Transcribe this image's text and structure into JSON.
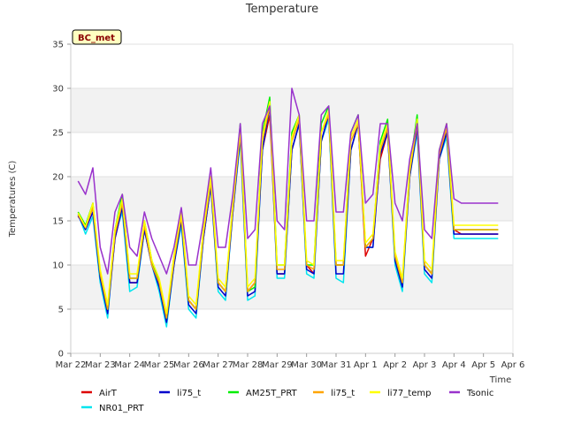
{
  "chart_data": {
    "type": "line",
    "title": "Temperature",
    "xlabel": "Time",
    "ylabel": "Temperatures (C)",
    "badge": "BC_met",
    "ylim": [
      0,
      35
    ],
    "yticks": [
      0,
      5,
      10,
      15,
      20,
      25,
      30,
      35
    ],
    "xlim": [
      0,
      15
    ],
    "xticks": [
      0,
      1,
      2,
      3,
      4,
      5,
      6,
      7,
      8,
      9,
      10,
      11,
      12,
      13,
      14,
      15
    ],
    "xtick_labels": [
      "Mar 22",
      "Mar 23",
      "Mar 24",
      "Mar 25",
      "Mar 26",
      "Mar 27",
      "Mar 28",
      "Mar 29",
      "Mar 30",
      "Mar 31",
      "Apr 1",
      "Apr 2",
      "Apr 3",
      "Apr 4",
      "Apr 5",
      "Apr 6"
    ],
    "grid": "horizontal bands",
    "legend_position": "bottom",
    "x": [
      0.25,
      0.5,
      0.75,
      1.0,
      1.25,
      1.5,
      1.75,
      2.0,
      2.25,
      2.5,
      2.75,
      3.0,
      3.25,
      3.5,
      3.75,
      4.0,
      4.25,
      4.5,
      4.75,
      5.0,
      5.25,
      5.5,
      5.75,
      6.0,
      6.25,
      6.5,
      6.75,
      7.0,
      7.25,
      7.5,
      7.75,
      8.0,
      8.25,
      8.5,
      8.75,
      9.0,
      9.25,
      9.5,
      9.75,
      10.0,
      10.25,
      10.5,
      10.75,
      11.0,
      11.25,
      11.5,
      11.75,
      12.0,
      12.25,
      12.5,
      12.75,
      13.0,
      13.25,
      13.5,
      13.75,
      14.0,
      14.25,
      14.5
    ],
    "series": [
      {
        "name": "AirT",
        "color": "#dd0000",
        "values": [
          15.5,
          14.5,
          16.5,
          9,
          5,
          13,
          16.5,
          8,
          8,
          14,
          10,
          8,
          4,
          10,
          15,
          6,
          5,
          13,
          19,
          8,
          7,
          16,
          25,
          7,
          8,
          23,
          27,
          9,
          9,
          23,
          26,
          10,
          9,
          24,
          27,
          10,
          10,
          23,
          26,
          11,
          13,
          22,
          25,
          11,
          8,
          20,
          26,
          10,
          9,
          22,
          25,
          14,
          13.5,
          13.5,
          13.5,
          13.5,
          13.5,
          13.5
        ]
      },
      {
        "name": "NR01_PRT",
        "color": "#00e5ee",
        "values": [
          15.8,
          13.5,
          15.5,
          8,
          4,
          13.5,
          16,
          7,
          7.5,
          14,
          10,
          7,
          3,
          10,
          14.5,
          5,
          4,
          13,
          19,
          7,
          6,
          16,
          24,
          6,
          6.5,
          23,
          28,
          8.5,
          8.5,
          23,
          26,
          9,
          8.5,
          24,
          26.5,
          8.5,
          8,
          23,
          26,
          12,
          12,
          23,
          25,
          10,
          7,
          20,
          25,
          9,
          8,
          22,
          24.5,
          13,
          13,
          13,
          13,
          13,
          13,
          13
        ]
      },
      {
        "name": "li75_t",
        "color": "#0000cc",
        "values": [
          15.6,
          14,
          16,
          8.5,
          4.5,
          13,
          16.5,
          8,
          8,
          14,
          10,
          7.5,
          3.5,
          10,
          15,
          5.5,
          4.5,
          13,
          19,
          7.5,
          6.5,
          16,
          24.5,
          6.5,
          7,
          23,
          28,
          9,
          9,
          23,
          26,
          9.5,
          9,
          24,
          27,
          9,
          9,
          23,
          26,
          12,
          12,
          22.5,
          25,
          10.5,
          7.5,
          20,
          25.5,
          9.5,
          8.5,
          22,
          25,
          13.5,
          13.5,
          13.5,
          13.5,
          13.5,
          13.5,
          13.5
        ]
      },
      {
        "name": "AM25T_PRT",
        "color": "#00ee00",
        "values": [
          16,
          14.5,
          17,
          9,
          5,
          14,
          18,
          8.5,
          8.5,
          15,
          10.5,
          8,
          4,
          11,
          16,
          6,
          5,
          14,
          20,
          8,
          7,
          17,
          26,
          7,
          7.5,
          25,
          29,
          10,
          10,
          25,
          27,
          10,
          10,
          26,
          28,
          10,
          10,
          25,
          27,
          12,
          13,
          24,
          26.5,
          11,
          8,
          21,
          27,
          10,
          9,
          23,
          26,
          14,
          14,
          14,
          14,
          14,
          14,
          14
        ]
      },
      {
        "name": "li75_t",
        "color": "#ffa500",
        "values": [
          15.7,
          14.2,
          16.5,
          9,
          5,
          13.5,
          17,
          8.5,
          8.5,
          14.5,
          10,
          8,
          4,
          10.5,
          15.5,
          6,
          5,
          13.5,
          19.5,
          8,
          7,
          16.5,
          25,
          7,
          8,
          24,
          28,
          9.5,
          9.5,
          24,
          26.5,
          10,
          9.5,
          25,
          27,
          10,
          10,
          24,
          26,
          12,
          13,
          23,
          25.5,
          11,
          8,
          20.5,
          26,
          10,
          9,
          22.5,
          25.5,
          14,
          14,
          14,
          14,
          14,
          14,
          14
        ]
      },
      {
        "name": "li77_temp",
        "color": "#ffff00",
        "values": [
          15.9,
          14.3,
          17,
          9.5,
          5.5,
          14,
          17.5,
          9,
          9,
          15,
          10.5,
          8.5,
          4.5,
          11,
          16,
          6.5,
          5.5,
          14,
          20,
          8.5,
          7.5,
          17,
          25.5,
          7.5,
          8.5,
          24.5,
          28.5,
          10,
          10,
          24.5,
          27,
          10.5,
          10,
          25,
          27.5,
          10.5,
          10.5,
          24.5,
          26.5,
          12.5,
          13.5,
          23.5,
          26,
          11.5,
          8.5,
          21,
          26.5,
          10.5,
          9.5,
          23,
          26,
          14.5,
          14.5,
          14.5,
          14.5,
          14.5,
          14.5,
          14.5
        ]
      },
      {
        "name": "Tsonic",
        "color": "#9932cc",
        "values": [
          19.5,
          18,
          21,
          12,
          9,
          16,
          18,
          12,
          11,
          16,
          13,
          11,
          9,
          12,
          16.5,
          10,
          10,
          15,
          21,
          12,
          12,
          18,
          26,
          13,
          14,
          26,
          28,
          15,
          14,
          30,
          27,
          15,
          15,
          27,
          28,
          16,
          16,
          25,
          27,
          17,
          18,
          26,
          26,
          17,
          15,
          22,
          26,
          14,
          13,
          23,
          26,
          17.5,
          17,
          17,
          17,
          17,
          17,
          17
        ]
      }
    ]
  }
}
